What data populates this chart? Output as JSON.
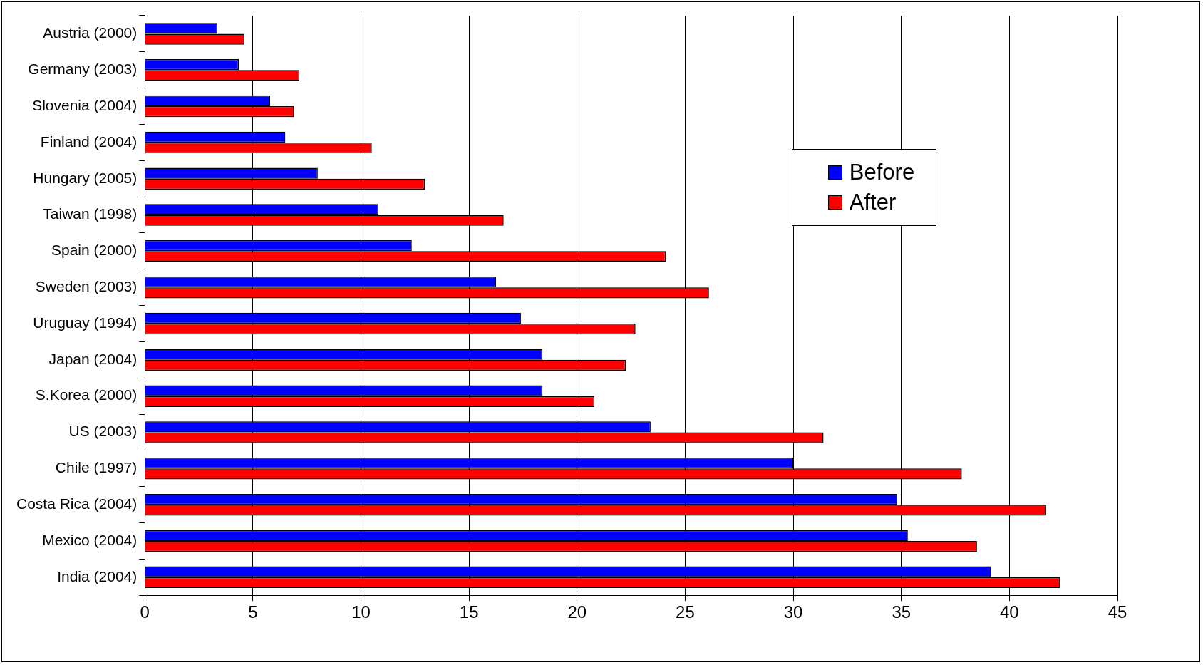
{
  "chart_data": {
    "type": "bar",
    "orientation": "horizontal",
    "categories": [
      "Austria (2000)",
      "Germany (2003)",
      "Slovenia (2004)",
      "Finland (2004)",
      "Hungary (2005)",
      "Taiwan (1998)",
      "Spain (2000)",
      "Sweden (2003)",
      "Uruguay (1994)",
      "Japan (2004)",
      "S.Korea (2000)",
      "US (2003)",
      "Chile (1997)",
      "Costa Rica (2004)",
      "Mexico (2004)",
      "India (2004)"
    ],
    "series": [
      {
        "name": "Before",
        "color": "#0000ff",
        "values": [
          3.35,
          4.35,
          5.8,
          6.5,
          8.0,
          10.8,
          12.35,
          16.25,
          17.4,
          18.4,
          18.4,
          23.4,
          30.0,
          34.8,
          35.3,
          39.15
        ]
      },
      {
        "name": "After",
        "color": "#ff0000",
        "values": [
          4.6,
          7.15,
          6.9,
          10.5,
          12.95,
          16.6,
          24.1,
          26.1,
          22.7,
          22.25,
          20.8,
          31.4,
          37.8,
          41.7,
          38.5,
          42.35
        ]
      }
    ],
    "xlim": [
      0,
      45
    ],
    "xticks": [
      0,
      5,
      10,
      15,
      20,
      25,
      30,
      35,
      40,
      45
    ],
    "grid": "x",
    "legend": "top right"
  }
}
